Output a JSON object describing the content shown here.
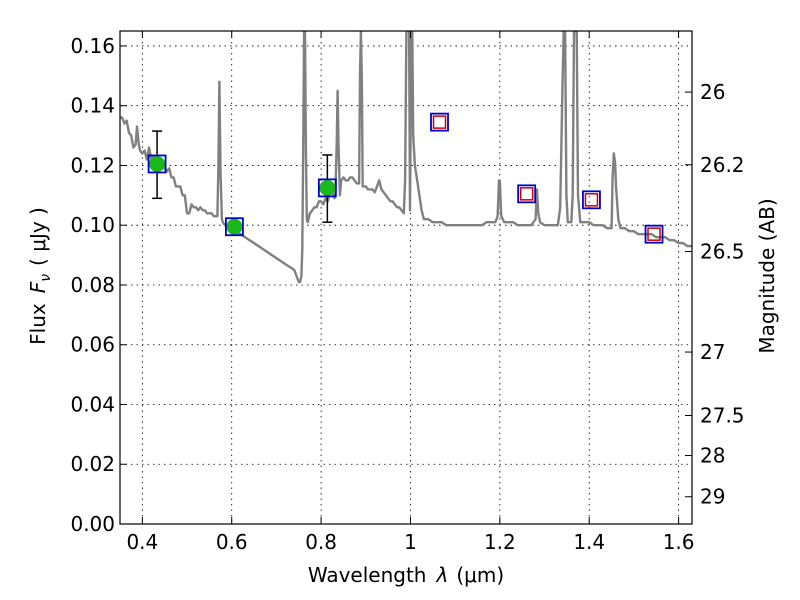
{
  "chart_data": {
    "type": "scatter",
    "xlabel": "Wavelength",
    "xlabel_symbol": "λ",
    "xlabel_unit": "(μm)",
    "ylabel": "Flux",
    "ylabel_symbol": "F",
    "ylabel_subscript": "ν",
    "ylabel_unit": "( μJy )",
    "y2label": "Magnitude (AB)",
    "xlim": [
      0.35,
      1.63
    ],
    "ylim": [
      0.0,
      0.165
    ],
    "x_ticks": [
      0.4,
      0.6,
      0.8,
      1.0,
      1.2,
      1.4,
      1.6
    ],
    "x_tick_labels": [
      "0.4",
      "0.6",
      "0.8",
      "1",
      "1.2",
      "1.4",
      "1.6"
    ],
    "y_ticks": [
      0.0,
      0.02,
      0.04,
      0.06,
      0.08,
      0.1,
      0.12,
      0.14,
      0.16
    ],
    "y_tick_labels": [
      "0.00",
      "0.02",
      "0.04",
      "0.06",
      "0.08",
      "0.10",
      "0.12",
      "0.14",
      "0.16"
    ],
    "y2_ticks": [
      26,
      26.2,
      26.5,
      27,
      27.5,
      28,
      29
    ],
    "y2_tick_labels": [
      "26",
      "26.2",
      "26.5",
      "27",
      "27.5",
      "28",
      "29"
    ],
    "grid": true,
    "colors": {
      "model": "#808080",
      "observed_fill": "#1ab81a",
      "model_box": "#0000cc",
      "inner_box": "#cc0000",
      "error_bar": "#000000"
    },
    "series": [
      {
        "kind": "model_spectrum",
        "points": [
          [
            0.35,
            0.136
          ],
          [
            0.355,
            0.136
          ],
          [
            0.36,
            0.134
          ],
          [
            0.365,
            0.135
          ],
          [
            0.37,
            0.131
          ],
          [
            0.375,
            0.13
          ],
          [
            0.38,
            0.126
          ],
          [
            0.385,
            0.127
          ],
          [
            0.388,
            0.133
          ],
          [
            0.392,
            0.127
          ],
          [
            0.395,
            0.125
          ],
          [
            0.4,
            0.124
          ],
          [
            0.405,
            0.125
          ],
          [
            0.41,
            0.122
          ],
          [
            0.415,
            0.126
          ],
          [
            0.42,
            0.122
          ],
          [
            0.425,
            0.123
          ],
          [
            0.43,
            0.122
          ],
          [
            0.435,
            0.121
          ],
          [
            0.44,
            0.121
          ],
          [
            0.445,
            0.12
          ],
          [
            0.45,
            0.119
          ],
          [
            0.455,
            0.118
          ],
          [
            0.46,
            0.119
          ],
          [
            0.465,
            0.116
          ],
          [
            0.47,
            0.116
          ],
          [
            0.475,
            0.113
          ],
          [
            0.48,
            0.113
          ],
          [
            0.485,
            0.113
          ],
          [
            0.49,
            0.11
          ],
          [
            0.495,
            0.11
          ],
          [
            0.5,
            0.104
          ],
          [
            0.505,
            0.104
          ],
          [
            0.51,
            0.107
          ],
          [
            0.515,
            0.106
          ],
          [
            0.52,
            0.106
          ],
          [
            0.525,
            0.105
          ],
          [
            0.53,
            0.106
          ],
          [
            0.535,
            0.105
          ],
          [
            0.54,
            0.105
          ],
          [
            0.545,
            0.104
          ],
          [
            0.55,
            0.104
          ],
          [
            0.555,
            0.104
          ],
          [
            0.56,
            0.103
          ],
          [
            0.565,
            0.103
          ],
          [
            0.568,
            0.103
          ],
          [
            0.57,
            0.118
          ],
          [
            0.5725,
            0.148
          ],
          [
            0.575,
            0.118
          ],
          [
            0.578,
            0.102
          ],
          [
            0.58,
            0.101
          ],
          [
            0.585,
            0.1
          ],
          [
            0.59,
            0.1
          ],
          [
            0.595,
            0.1
          ],
          [
            0.6,
            0.099
          ],
          [
            0.61,
            0.098
          ],
          [
            0.62,
            0.097
          ],
          [
            0.63,
            0.096
          ],
          [
            0.64,
            0.095
          ],
          [
            0.65,
            0.094
          ],
          [
            0.66,
            0.093
          ],
          [
            0.67,
            0.092
          ],
          [
            0.68,
            0.091
          ],
          [
            0.69,
            0.09
          ],
          [
            0.7,
            0.089
          ],
          [
            0.71,
            0.088
          ],
          [
            0.72,
            0.087
          ],
          [
            0.73,
            0.086
          ],
          [
            0.74,
            0.085
          ],
          [
            0.745,
            0.083
          ],
          [
            0.75,
            0.081
          ],
          [
            0.753,
            0.081
          ],
          [
            0.756,
            0.083
          ],
          [
            0.758,
            0.092
          ],
          [
            0.76,
            0.125
          ],
          [
            0.762,
            0.165
          ],
          [
            0.764,
            0.165
          ],
          [
            0.766,
            0.125
          ],
          [
            0.768,
            0.102
          ],
          [
            0.77,
            0.101
          ],
          [
            0.775,
            0.104
          ],
          [
            0.78,
            0.105
          ],
          [
            0.785,
            0.106
          ],
          [
            0.79,
            0.106
          ],
          [
            0.795,
            0.108
          ],
          [
            0.8,
            0.108
          ],
          [
            0.805,
            0.107
          ],
          [
            0.81,
            0.109
          ],
          [
            0.815,
            0.108
          ],
          [
            0.82,
            0.111
          ],
          [
            0.825,
            0.111
          ],
          [
            0.83,
            0.109
          ],
          [
            0.832,
            0.111
          ],
          [
            0.835,
            0.127
          ],
          [
            0.837,
            0.145
          ],
          [
            0.839,
            0.127
          ],
          [
            0.842,
            0.11
          ],
          [
            0.845,
            0.115
          ],
          [
            0.85,
            0.116
          ],
          [
            0.855,
            0.115
          ],
          [
            0.86,
            0.115
          ],
          [
            0.865,
            0.116
          ],
          [
            0.87,
            0.116
          ],
          [
            0.875,
            0.115
          ],
          [
            0.88,
            0.114
          ],
          [
            0.885,
            0.114
          ],
          [
            0.887,
            0.15
          ],
          [
            0.889,
            0.165
          ],
          [
            0.891,
            0.15
          ],
          [
            0.893,
            0.113
          ],
          [
            0.9,
            0.113
          ],
          [
            0.905,
            0.112
          ],
          [
            0.91,
            0.112
          ],
          [
            0.915,
            0.112
          ],
          [
            0.92,
            0.111
          ],
          [
            0.925,
            0.113
          ],
          [
            0.93,
            0.115
          ],
          [
            0.935,
            0.112
          ],
          [
            0.94,
            0.111
          ],
          [
            0.945,
            0.11
          ],
          [
            0.95,
            0.109
          ],
          [
            0.955,
            0.108
          ],
          [
            0.96,
            0.108
          ],
          [
            0.965,
            0.107
          ],
          [
            0.97,
            0.106
          ],
          [
            0.975,
            0.106
          ],
          [
            0.98,
            0.105
          ],
          [
            0.985,
            0.104
          ],
          [
            0.988,
            0.115
          ],
          [
            0.991,
            0.165
          ],
          [
            0.994,
            0.165
          ],
          [
            0.997,
            0.165
          ],
          [
            0.999,
            0.105
          ],
          [
            1.002,
            0.165
          ],
          [
            1.004,
            0.165
          ],
          [
            1.006,
            0.13
          ],
          [
            1.01,
            0.12
          ],
          [
            1.015,
            0.115
          ],
          [
            1.02,
            0.11
          ],
          [
            1.025,
            0.105
          ],
          [
            1.03,
            0.102
          ],
          [
            1.04,
            0.102
          ],
          [
            1.05,
            0.101
          ],
          [
            1.06,
            0.101
          ],
          [
            1.07,
            0.101
          ],
          [
            1.08,
            0.1
          ],
          [
            1.09,
            0.1
          ],
          [
            1.1,
            0.1
          ],
          [
            1.11,
            0.1
          ],
          [
            1.12,
            0.1
          ],
          [
            1.13,
            0.1
          ],
          [
            1.14,
            0.1
          ],
          [
            1.15,
            0.1
          ],
          [
            1.16,
            0.1
          ],
          [
            1.17,
            0.101
          ],
          [
            1.18,
            0.101
          ],
          [
            1.19,
            0.101
          ],
          [
            1.195,
            0.103
          ],
          [
            1.198,
            0.115
          ],
          [
            1.2,
            0.115
          ],
          [
            1.203,
            0.103
          ],
          [
            1.21,
            0.101
          ],
          [
            1.22,
            0.101
          ],
          [
            1.23,
            0.101
          ],
          [
            1.24,
            0.1
          ],
          [
            1.25,
            0.1
          ],
          [
            1.26,
            0.1
          ],
          [
            1.27,
            0.1
          ],
          [
            1.275,
            0.101
          ],
          [
            1.28,
            0.102
          ],
          [
            1.283,
            0.112
          ],
          [
            1.286,
            0.104
          ],
          [
            1.29,
            0.101
          ],
          [
            1.3,
            0.1
          ],
          [
            1.31,
            0.1
          ],
          [
            1.32,
            0.1
          ],
          [
            1.33,
            0.1
          ],
          [
            1.335,
            0.106
          ],
          [
            1.34,
            0.145
          ],
          [
            1.343,
            0.165
          ],
          [
            1.346,
            0.165
          ],
          [
            1.349,
            0.11
          ],
          [
            1.352,
            0.101
          ],
          [
            1.355,
            0.101
          ],
          [
            1.36,
            0.101
          ],
          [
            1.363,
            0.11
          ],
          [
            1.366,
            0.165
          ],
          [
            1.369,
            0.165
          ],
          [
            1.372,
            0.165
          ],
          [
            1.375,
            0.11
          ],
          [
            1.38,
            0.101
          ],
          [
            1.39,
            0.101
          ],
          [
            1.4,
            0.101
          ],
          [
            1.41,
            0.1
          ],
          [
            1.42,
            0.1
          ],
          [
            1.43,
            0.1
          ],
          [
            1.44,
            0.099
          ],
          [
            1.45,
            0.099
          ],
          [
            1.452,
            0.115
          ],
          [
            1.455,
            0.124
          ],
          [
            1.458,
            0.121
          ],
          [
            1.46,
            0.113
          ],
          [
            1.465,
            0.102
          ],
          [
            1.47,
            0.099
          ],
          [
            1.48,
            0.099
          ],
          [
            1.49,
            0.098
          ],
          [
            1.5,
            0.098
          ],
          [
            1.51,
            0.097
          ],
          [
            1.52,
            0.097
          ],
          [
            1.53,
            0.097
          ],
          [
            1.54,
            0.097
          ],
          [
            1.55,
            0.096
          ],
          [
            1.56,
            0.096
          ],
          [
            1.57,
            0.096
          ],
          [
            1.58,
            0.095
          ],
          [
            1.59,
            0.095
          ],
          [
            1.6,
            0.094
          ],
          [
            1.61,
            0.094
          ],
          [
            1.62,
            0.093
          ],
          [
            1.63,
            0.093
          ]
        ]
      },
      {
        "kind": "observed",
        "points": [
          {
            "x": 0.433,
            "y": 0.1205,
            "yerr_low": 0.109,
            "yerr_high": 0.1315
          },
          {
            "x": 0.606,
            "y": 0.0995
          },
          {
            "x": 0.814,
            "y": 0.1125,
            "yerr_low": 0.101,
            "yerr_high": 0.1235
          }
        ]
      },
      {
        "kind": "model_photometry",
        "points": [
          {
            "x": 0.433,
            "y": 0.1205,
            "inner": false
          },
          {
            "x": 0.606,
            "y": 0.0995,
            "inner": false
          },
          {
            "x": 0.814,
            "y": 0.1125,
            "inner": false
          },
          {
            "x": 1.065,
            "y": 0.1345,
            "inner": true
          },
          {
            "x": 1.26,
            "y": 0.1105,
            "inner": true
          },
          {
            "x": 1.405,
            "y": 0.1085,
            "inner": true
          },
          {
            "x": 1.545,
            "y": 0.097,
            "inner": true
          }
        ]
      }
    ]
  }
}
